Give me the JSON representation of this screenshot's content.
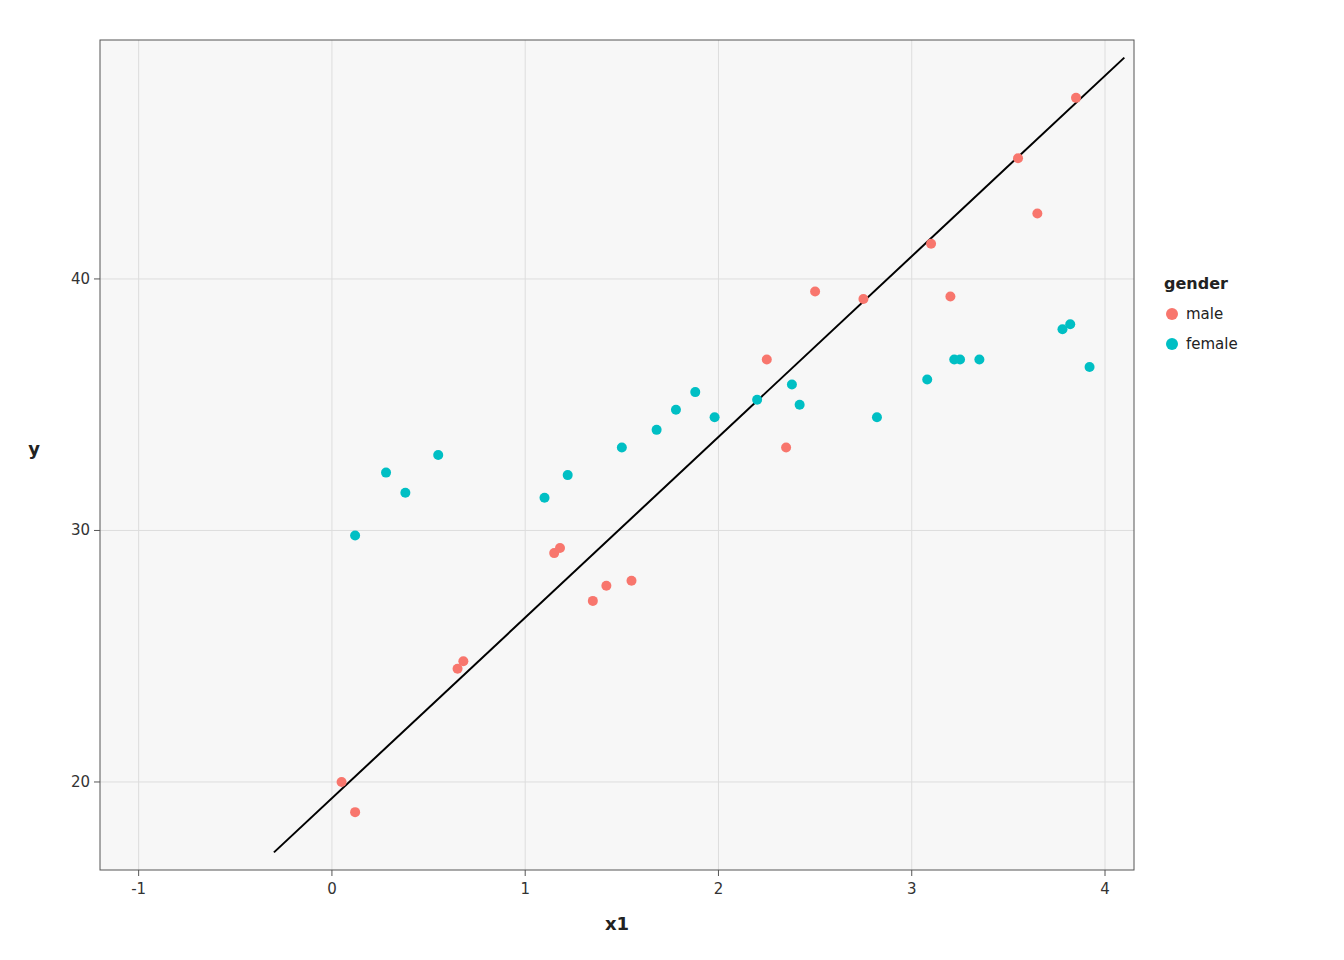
{
  "chart_data": {
    "type": "scatter",
    "x_label": "x1",
    "y_label": "y",
    "legend_title": "gender",
    "xlim": [
      -1.2,
      4.15
    ],
    "ylim": [
      16.5,
      49.5
    ],
    "xticks": [
      -1,
      0,
      1,
      2,
      3,
      4
    ],
    "yticks": [
      20,
      30,
      40
    ],
    "grid": true,
    "legend": "right",
    "series": [
      {
        "name": "male",
        "type": "scatter",
        "color": "#F8766D",
        "marker": "circle",
        "x": [
          0.05,
          0.12,
          0.65,
          0.68,
          1.15,
          1.18,
          1.35,
          1.42,
          1.55,
          2.25,
          2.35,
          2.5,
          2.75,
          3.1,
          3.2,
          3.55,
          3.65,
          3.85
        ],
        "values": [
          20.0,
          18.8,
          24.5,
          24.8,
          29.1,
          29.3,
          27.2,
          27.8,
          28.0,
          36.8,
          33.3,
          39.5,
          39.2,
          41.4,
          39.3,
          44.8,
          42.6,
          47.2
        ]
      },
      {
        "name": "female",
        "type": "scatter",
        "color": "#00BFC4",
        "marker": "circle",
        "x": [
          0.12,
          0.28,
          0.38,
          0.55,
          1.1,
          1.22,
          1.5,
          1.68,
          1.78,
          1.88,
          1.98,
          2.2,
          2.38,
          2.42,
          2.82,
          3.08,
          3.22,
          3.25,
          3.35,
          3.78,
          3.82,
          3.92
        ],
        "values": [
          29.8,
          32.3,
          31.5,
          33.0,
          31.3,
          32.2,
          33.3,
          34.0,
          34.8,
          35.5,
          34.5,
          35.2,
          35.8,
          35.0,
          34.5,
          36.0,
          36.8,
          36.8,
          36.8,
          38.0,
          38.2,
          36.5
        ]
      },
      {
        "type": "line",
        "color": "#000000",
        "line_style": "solid",
        "x": [
          -0.3,
          4.1
        ],
        "values": [
          17.2,
          48.8
        ]
      }
    ]
  }
}
